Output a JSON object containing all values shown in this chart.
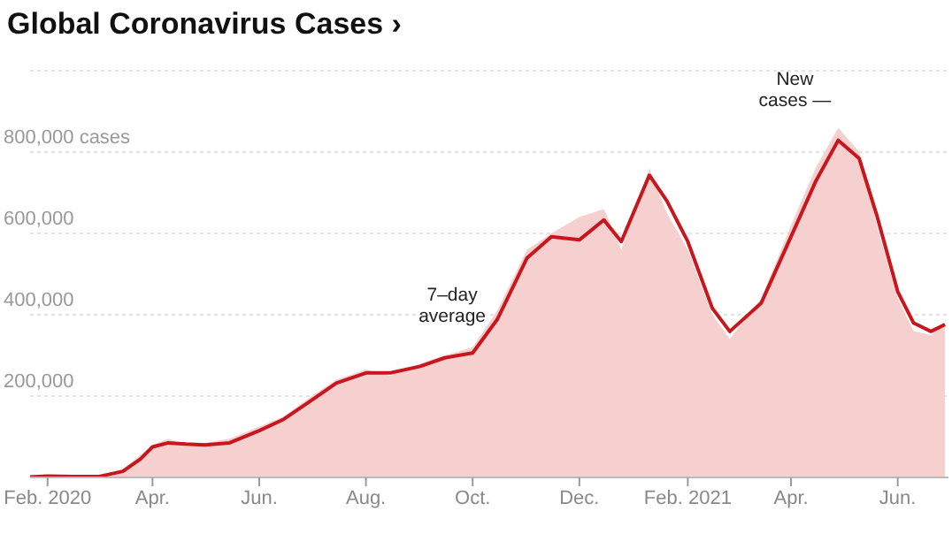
{
  "chart_data": {
    "type": "area",
    "title": "Global Coronavirus Cases ›",
    "x": [
      "2020-01-22",
      "2020-02-01",
      "2020-02-15",
      "2020-03-01",
      "2020-03-15",
      "2020-03-25",
      "2020-04-01",
      "2020-04-10",
      "2020-04-20",
      "2020-05-01",
      "2020-05-15",
      "2020-06-01",
      "2020-06-15",
      "2020-07-01",
      "2020-07-15",
      "2020-08-01",
      "2020-08-15",
      "2020-09-01",
      "2020-09-15",
      "2020-10-01",
      "2020-10-15",
      "2020-11-01",
      "2020-11-15",
      "2020-12-01",
      "2020-12-15",
      "2020-12-25",
      "2021-01-10",
      "2021-01-20",
      "2021-02-01",
      "2021-02-15",
      "2021-02-25",
      "2021-03-15",
      "2021-04-01",
      "2021-04-15",
      "2021-04-28",
      "2021-05-10",
      "2021-05-20",
      "2021-06-01",
      "2021-06-10",
      "2021-06-20",
      "2021-06-28"
    ],
    "series": [
      {
        "color": "#f6cfcf",
        "values": [
          1000,
          3000,
          2000,
          3000,
          20000,
          55000,
          80000,
          95000,
          80000,
          85000,
          95000,
          125000,
          150000,
          200000,
          240000,
          265000,
          250000,
          280000,
          300000,
          320000,
          410000,
          560000,
          600000,
          640000,
          660000,
          560000,
          760000,
          650000,
          560000,
          400000,
          340000,
          440000,
          620000,
          760000,
          860000,
          800000,
          620000,
          440000,
          360000,
          350000,
          380000
        ]
      },
      {
        "type": "line",
        "color": "#c8161d",
        "values": [
          1000,
          3000,
          2000,
          2000,
          15000,
          45000,
          75000,
          85000,
          82000,
          80000,
          85000,
          115000,
          143000,
          190000,
          232000,
          257000,
          257000,
          273000,
          294000,
          306000,
          388000,
          539000,
          592000,
          584000,
          633000,
          580000,
          743000,
          680000,
          580000,
          416000,
          359000,
          429000,
          592000,
          727000,
          829000,
          784000,
          645000,
          457000,
          380000,
          359000,
          376000
        ]
      }
    ],
    "xlim": [
      "2020-01-22",
      "2021-06-30"
    ],
    "xticks": [
      {
        "value": "2020-02-01",
        "label": "Feb. 2020"
      },
      {
        "value": "2020-04-01",
        "label": "Apr."
      },
      {
        "value": "2020-06-01",
        "label": "Jun."
      },
      {
        "value": "2020-08-01",
        "label": "Aug."
      },
      {
        "value": "2020-10-01",
        "label": "Oct."
      },
      {
        "value": "2020-12-01",
        "label": "Dec."
      },
      {
        "value": "2021-02-01",
        "label": "Feb. 2021"
      },
      {
        "value": "2021-04-01",
        "label": "Apr."
      },
      {
        "value": "2021-06-01",
        "label": "Jun."
      }
    ],
    "ylim": [
      0,
      1000000
    ],
    "yticks": [
      {
        "value": 200000,
        "label": "200,000"
      },
      {
        "value": 400000,
        "label": "400,000"
      },
      {
        "value": 600000,
        "label": "600,000"
      },
      {
        "value": 800000,
        "label": "800,000 cases"
      }
    ],
    "grid": "y",
    "annotations": [
      "7–day\naverage",
      "New\ncases —"
    ]
  }
}
